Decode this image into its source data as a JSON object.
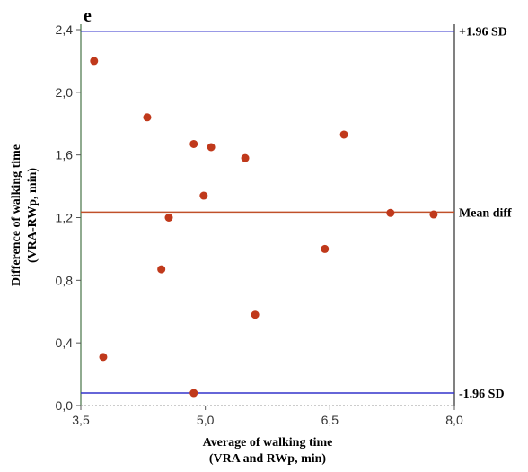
{
  "chart_data": {
    "type": "scatter",
    "panel_label": "e",
    "xlabel_line1": "Average of walking time",
    "xlabel_line2": "(VRA and RWp, min)",
    "ylabel_line1": "Difference of walking time",
    "ylabel_line2": "(VRA-RWp, min)",
    "xlim": [
      3.5,
      8.0
    ],
    "ylim": [
      0.0,
      2.4
    ],
    "x_ticks": [
      "3,5",
      "5,0",
      "6,5",
      "8,0"
    ],
    "x_tick_values": [
      3.5,
      5.0,
      6.5,
      8.0
    ],
    "y_ticks": [
      "0,0",
      "0,4",
      "0,8",
      "1,2",
      "1,6",
      "2,0",
      "2,4"
    ],
    "y_tick_values": [
      0.0,
      0.4,
      0.8,
      1.2,
      1.6,
      2.0,
      2.4
    ],
    "reference_lines": [
      {
        "label": "+1.96 SD",
        "value": 2.39,
        "color": "#3333cc"
      },
      {
        "label": "Mean diff",
        "value": 1.235,
        "color": "#c0502a"
      },
      {
        "label": "-1.96 SD",
        "value": 0.08,
        "color": "#3333cc"
      }
    ],
    "point_color": "#c0391b",
    "points": [
      {
        "x": 3.66,
        "y": 2.2
      },
      {
        "x": 3.77,
        "y": 0.31
      },
      {
        "x": 4.3,
        "y": 1.84
      },
      {
        "x": 4.47,
        "y": 0.87
      },
      {
        "x": 4.56,
        "y": 1.2
      },
      {
        "x": 4.86,
        "y": 1.67
      },
      {
        "x": 4.86,
        "y": 0.08
      },
      {
        "x": 4.98,
        "y": 1.34
      },
      {
        "x": 5.07,
        "y": 1.65
      },
      {
        "x": 5.48,
        "y": 1.58
      },
      {
        "x": 5.6,
        "y": 0.58
      },
      {
        "x": 6.44,
        "y": 1.0
      },
      {
        "x": 6.67,
        "y": 1.73
      },
      {
        "x": 7.23,
        "y": 1.23
      },
      {
        "x": 7.75,
        "y": 1.22
      }
    ]
  }
}
